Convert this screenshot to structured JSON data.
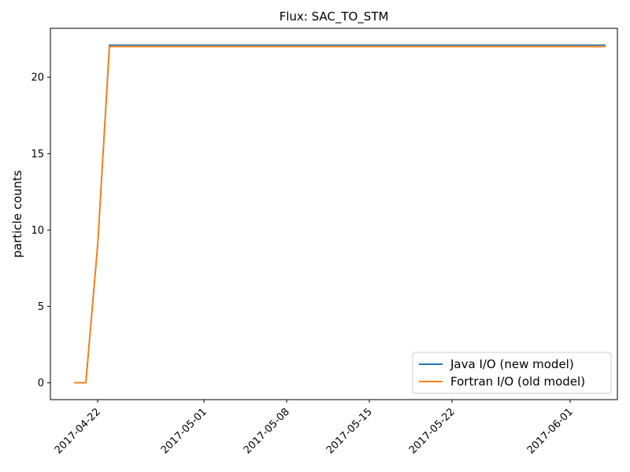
{
  "chart_data": {
    "type": "line",
    "title": "Flux: SAC_TO_STM",
    "xlabel": "",
    "ylabel": "particle counts",
    "x_tick_labels": [
      "2017-04-22",
      "2017-05-01",
      "2017-05-08",
      "2017-05-15",
      "2017-05-22",
      "2017-06-01"
    ],
    "x_tick_dates": [
      "2017-04-22",
      "2017-05-01",
      "2017-05-08",
      "2017-05-15",
      "2017-05-22",
      "2017-06-01"
    ],
    "y_ticks": [
      0,
      5,
      10,
      15,
      20
    ],
    "xlim": [
      "2017-04-18",
      "2017-06-05"
    ],
    "ylim": [
      -1.1,
      23.2
    ],
    "grid": false,
    "legend_position": "lower-right",
    "series": [
      {
        "name": "Java I/O (new model)",
        "color": "#1f77b4",
        "x": [
          "2017-04-20",
          "2017-04-21",
          "2017-04-22",
          "2017-04-23",
          "2017-06-04"
        ],
        "values": [
          0,
          0,
          9,
          22.1,
          22.1
        ]
      },
      {
        "name": "Fortran I/O (old model)",
        "color": "#ff7f0e",
        "x": [
          "2017-04-20",
          "2017-04-21",
          "2017-04-22",
          "2017-04-23",
          "2017-06-04"
        ],
        "values": [
          0,
          0,
          9,
          22.0,
          22.0
        ]
      }
    ]
  }
}
